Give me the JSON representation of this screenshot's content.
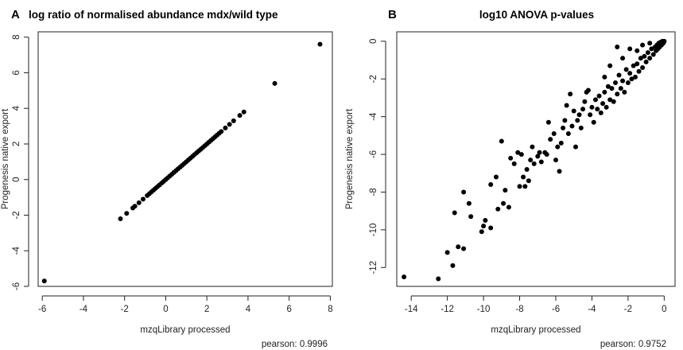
{
  "chart_data": [
    {
      "type": "scatter",
      "panel": "A",
      "title": "log ratio of normalised abundance mdx/wild type",
      "xlabel": "mzqLibrary processed",
      "ylabel": "Progenesis native export",
      "xlim": [
        -6.2,
        8.1
      ],
      "ylim": [
        -6,
        8.3
      ],
      "xticks": [
        -6,
        -4,
        -2,
        0,
        2,
        4,
        6,
        8
      ],
      "yticks": [
        -6,
        -4,
        -2,
        0,
        2,
        4,
        6,
        8
      ],
      "grid": false,
      "annotation": "pearson:  0.9996",
      "points": [
        [
          -5.9,
          -5.7
        ],
        [
          -2.2,
          -2.2
        ],
        [
          -1.9,
          -1.9
        ],
        [
          -1.6,
          -1.6
        ],
        [
          -1.5,
          -1.5
        ],
        [
          -1.3,
          -1.3
        ],
        [
          -1.1,
          -1.1
        ],
        [
          -0.9,
          -0.9
        ],
        [
          -0.8,
          -0.8
        ],
        [
          -0.7,
          -0.7
        ],
        [
          -0.6,
          -0.6
        ],
        [
          -0.5,
          -0.5
        ],
        [
          -0.4,
          -0.4
        ],
        [
          -0.3,
          -0.3
        ],
        [
          -0.2,
          -0.2
        ],
        [
          -0.1,
          -0.1
        ],
        [
          0.0,
          0.0
        ],
        [
          0.1,
          0.1
        ],
        [
          0.2,
          0.2
        ],
        [
          0.3,
          0.3
        ],
        [
          0.4,
          0.4
        ],
        [
          0.5,
          0.5
        ],
        [
          0.6,
          0.6
        ],
        [
          0.7,
          0.7
        ],
        [
          0.8,
          0.8
        ],
        [
          0.9,
          0.9
        ],
        [
          1.0,
          1.0
        ],
        [
          1.1,
          1.1
        ],
        [
          1.2,
          1.2
        ],
        [
          1.3,
          1.3
        ],
        [
          1.4,
          1.4
        ],
        [
          1.5,
          1.5
        ],
        [
          1.6,
          1.6
        ],
        [
          1.7,
          1.7
        ],
        [
          1.8,
          1.8
        ],
        [
          1.9,
          1.9
        ],
        [
          2.0,
          2.0
        ],
        [
          2.1,
          2.1
        ],
        [
          2.2,
          2.2
        ],
        [
          2.3,
          2.3
        ],
        [
          2.4,
          2.4
        ],
        [
          2.5,
          2.5
        ],
        [
          2.6,
          2.6
        ],
        [
          2.7,
          2.7
        ],
        [
          2.9,
          2.9
        ],
        [
          3.1,
          3.1
        ],
        [
          3.3,
          3.3
        ],
        [
          3.6,
          3.6
        ],
        [
          3.8,
          3.8
        ],
        [
          5.3,
          5.4
        ],
        [
          7.5,
          7.6
        ]
      ]
    },
    {
      "type": "scatter",
      "panel": "B",
      "title": "log10 ANOVA p-values",
      "xlabel": "mzqLibrary processed",
      "ylabel": "Progenesis native export",
      "xlim": [
        -14.8,
        0.6
      ],
      "ylim": [
        -13.0,
        0.5
      ],
      "xticks": [
        -14,
        -12,
        -10,
        -8,
        -6,
        -4,
        -2,
        0
      ],
      "yticks": [
        -12,
        -10,
        -8,
        -6,
        -4,
        -2,
        0
      ],
      "grid": false,
      "annotation": "pearson:  0.9752",
      "points": [
        [
          -14.4,
          -12.5
        ],
        [
          -12.5,
          -12.6
        ],
        [
          -12.0,
          -11.2
        ],
        [
          -11.7,
          -11.9
        ],
        [
          -11.4,
          -10.9
        ],
        [
          -11.6,
          -9.1
        ],
        [
          -11.1,
          -11.0
        ],
        [
          -10.7,
          -9.3
        ],
        [
          -10.1,
          -10.1
        ],
        [
          -10.0,
          -9.8
        ],
        [
          -9.9,
          -9.5
        ],
        [
          -9.6,
          -9.9
        ],
        [
          -9.2,
          -8.9
        ],
        [
          -9.0,
          -5.3
        ],
        [
          -11.1,
          -8.0
        ],
        [
          -9.3,
          -7.2
        ],
        [
          -8.9,
          -8.6
        ],
        [
          -8.8,
          -7.9
        ],
        [
          -8.6,
          -8.8
        ],
        [
          -8.3,
          -6.5
        ],
        [
          -8.1,
          -5.9
        ],
        [
          -8.0,
          -7.7
        ],
        [
          -7.8,
          -7.2
        ],
        [
          -7.7,
          -7.7
        ],
        [
          -7.6,
          -6.8
        ],
        [
          -7.5,
          -7.4
        ],
        [
          -7.4,
          -6.3
        ],
        [
          -7.3,
          -5.6
        ],
        [
          -7.2,
          -6.5
        ],
        [
          -7.0,
          -6.1
        ],
        [
          -6.9,
          -5.9
        ],
        [
          -6.8,
          -6.4
        ],
        [
          -6.6,
          -5.9
        ],
        [
          -6.5,
          -6.0
        ],
        [
          -6.3,
          -5.2
        ],
        [
          -6.1,
          -4.9
        ],
        [
          -6.0,
          -6.3
        ],
        [
          -5.9,
          -5.6
        ],
        [
          -5.8,
          -6.9
        ],
        [
          -5.7,
          -5.4
        ],
        [
          -5.6,
          -4.6
        ],
        [
          -5.5,
          -4.2
        ],
        [
          -5.4,
          -3.4
        ],
        [
          -5.3,
          -4.9
        ],
        [
          -5.1,
          -4.5
        ],
        [
          -5.0,
          -3.7
        ],
        [
          -4.9,
          -5.6
        ],
        [
          -4.8,
          -4.2
        ],
        [
          -4.7,
          -3.9
        ],
        [
          -4.6,
          -4.6
        ],
        [
          -4.5,
          -3.6
        ],
        [
          -4.4,
          -3.2
        ],
        [
          -4.2,
          -2.6
        ],
        [
          -4.1,
          -3.9
        ],
        [
          -4.0,
          -3.5
        ],
        [
          -3.9,
          -4.3
        ],
        [
          -3.8,
          -3.1
        ],
        [
          -3.7,
          -3.6
        ],
        [
          -3.6,
          -2.9
        ],
        [
          -3.5,
          -3.8
        ],
        [
          -3.4,
          -3.3
        ],
        [
          -3.3,
          -2.7
        ],
        [
          -3.2,
          -3.5
        ],
        [
          -3.1,
          -2.4
        ],
        [
          -3.0,
          -3.1
        ],
        [
          -2.9,
          -2.5
        ],
        [
          -2.8,
          -3.2
        ],
        [
          -2.7,
          -2.2
        ],
        [
          -2.6,
          -2.8
        ],
        [
          -2.5,
          -1.8
        ],
        [
          -2.4,
          -2.5
        ],
        [
          -2.3,
          -2.1
        ],
        [
          -2.2,
          -2.7
        ],
        [
          -2.1,
          -1.5
        ],
        [
          -2.0,
          -2.2
        ],
        [
          -1.9,
          -1.7
        ],
        [
          -1.8,
          -2.0
        ],
        [
          -1.7,
          -1.3
        ],
        [
          -1.6,
          -1.9
        ],
        [
          -1.5,
          -1.2
        ],
        [
          -1.4,
          -1.6
        ],
        [
          -1.3,
          -0.9
        ],
        [
          -1.2,
          -1.4
        ],
        [
          -1.1,
          -0.8
        ],
        [
          -1.0,
          -1.1
        ],
        [
          -0.9,
          -0.6
        ],
        [
          -0.8,
          -0.9
        ],
        [
          -0.7,
          -0.4
        ],
        [
          -0.6,
          -0.7
        ],
        [
          -0.5,
          -0.3
        ],
        [
          -0.45,
          -0.5
        ],
        [
          -0.4,
          -0.2
        ],
        [
          -0.35,
          -0.4
        ],
        [
          -0.3,
          -0.1
        ],
        [
          -0.25,
          -0.3
        ],
        [
          -0.2,
          -0.05
        ],
        [
          -0.15,
          -0.2
        ],
        [
          -0.1,
          0.0
        ],
        [
          -0.05,
          -0.1
        ],
        [
          0.0,
          0.0
        ],
        [
          -1.5,
          -0.5
        ],
        [
          -2.3,
          -0.9
        ],
        [
          -3.0,
          -1.3
        ],
        [
          -2.6,
          -0.3
        ],
        [
          -1.9,
          -0.4
        ],
        [
          -1.2,
          -0.2
        ],
        [
          -0.8,
          -0.1
        ],
        [
          -3.3,
          -1.9
        ],
        [
          -4.3,
          -2.7
        ],
        [
          -5.2,
          -2.8
        ],
        [
          -6.4,
          -4.3
        ],
        [
          -7.9,
          -6.0
        ],
        [
          -8.5,
          -6.2
        ],
        [
          -9.6,
          -7.6
        ],
        [
          -10.8,
          -8.6
        ]
      ]
    }
  ],
  "panels": [
    {
      "letter": "A"
    },
    {
      "letter": "B"
    }
  ],
  "colors": {
    "points": "#000000",
    "axis": "#222222",
    "background": "#ffffff"
  }
}
